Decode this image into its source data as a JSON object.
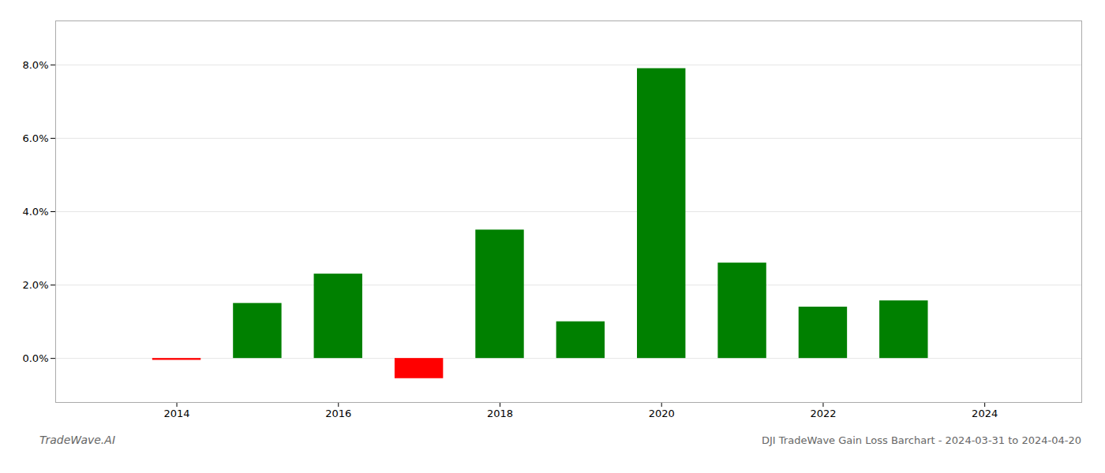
{
  "chart_data": {
    "type": "bar",
    "title": "DJI TradeWave Gain Loss Barchart - 2024-03-31 to 2024-04-20",
    "annotations": [
      "TradeWave.AI"
    ],
    "x": [
      2014,
      2015,
      2016,
      2017,
      2018,
      2019,
      2020,
      2021,
      2022,
      2023
    ],
    "values": [
      -0.0005,
      0.015,
      0.023,
      -0.0055,
      0.035,
      0.01,
      0.079,
      0.026,
      0.014,
      0.0157
    ],
    "colors": [
      "#ff0000",
      "#008000",
      "#008000",
      "#ff0000",
      "#008000",
      "#008000",
      "#008000",
      "#008000",
      "#008000",
      "#008000"
    ],
    "xlim": [
      2012.5,
      2025.2
    ],
    "xticks": [
      2014,
      2016,
      2018,
      2020,
      2022,
      2024
    ],
    "ylim": [
      -0.012,
      0.092
    ],
    "yticks": [
      {
        "value": 0.0,
        "label": "0.0%"
      },
      {
        "value": 0.02,
        "label": "2.0%"
      },
      {
        "value": 0.04,
        "label": "4.0%"
      },
      {
        "value": 0.06,
        "label": "6.0%"
      },
      {
        "value": 0.08,
        "label": "8.0%"
      }
    ],
    "grid": true
  }
}
